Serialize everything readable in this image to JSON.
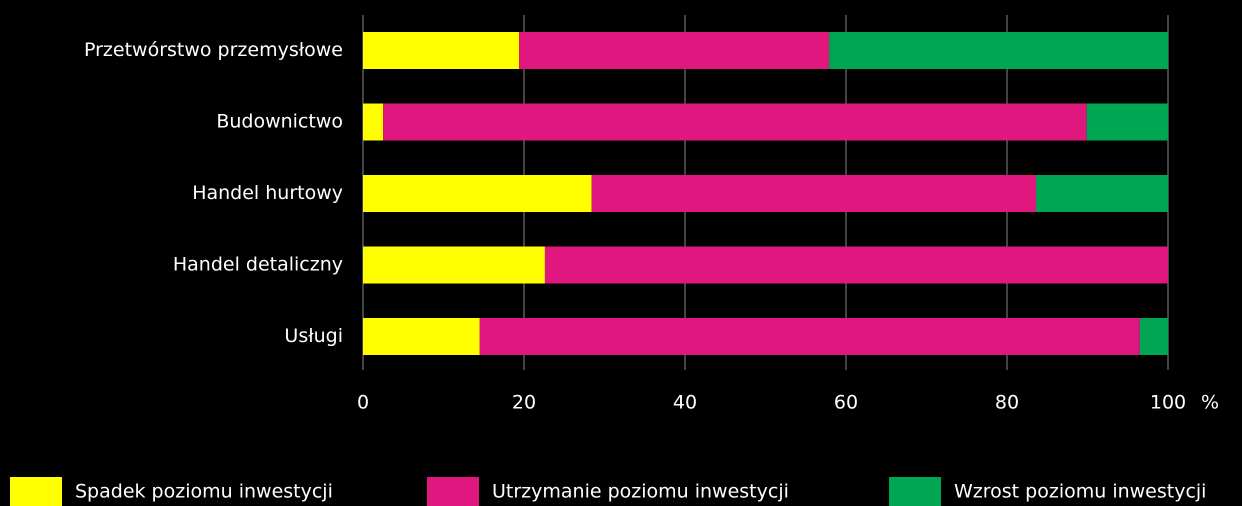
{
  "chart_data": {
    "type": "stacked-barh",
    "categories": [
      "Przetwórstwo przemysłowe",
      "Budownictwo",
      "Handel hurtowy",
      "Handel detaliczny",
      "Usługi"
    ],
    "series": [
      {
        "name": "Spadek poziomu inwestycji",
        "color": "#ffff00",
        "values": [
          19.4,
          2.5,
          28.4,
          22.6,
          14.5
        ]
      },
      {
        "name": "Utrzymanie poziomu inwestycji",
        "color": "#e0177f",
        "values": [
          38.5,
          87.4,
          55.2,
          77.4,
          82.0
        ]
      },
      {
        "name": "Wzrost poziomu inwestycji",
        "color": "#00a651",
        "values": [
          42.1,
          10.1,
          16.4,
          0,
          3.5
        ]
      }
    ],
    "xlim": [
      0,
      100
    ],
    "xticks": [
      0,
      20,
      40,
      60,
      80,
      100
    ],
    "x_unit": "%",
    "grid": true,
    "legend": "bottom"
  }
}
